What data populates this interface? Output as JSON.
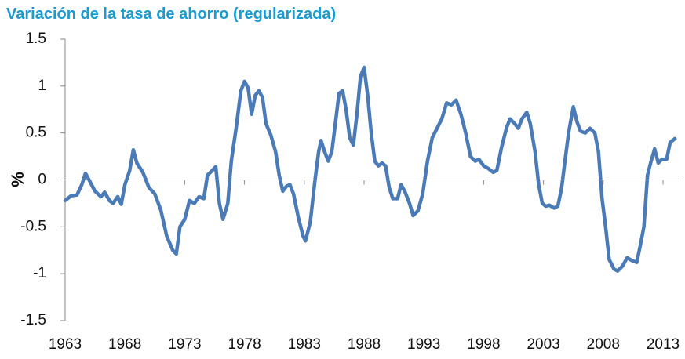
{
  "chart_data": {
    "type": "line",
    "title": "Variación de la tasa de ahorro (regularizada)",
    "y_label": "%",
    "x": [
      1963.0,
      1963.5,
      1964.0,
      1964.4,
      1964.7,
      1965.0,
      1965.5,
      1966.0,
      1966.3,
      1966.7,
      1967.0,
      1967.4,
      1967.7,
      1968.0,
      1968.4,
      1968.7,
      1969.0,
      1969.5,
      1970.0,
      1970.5,
      1971.0,
      1971.5,
      1972.0,
      1972.3,
      1972.6,
      1973.0,
      1973.4,
      1973.8,
      1974.2,
      1974.6,
      1974.9,
      1975.3,
      1975.6,
      1975.9,
      1976.2,
      1976.6,
      1976.9,
      1977.3,
      1977.7,
      1978.0,
      1978.3,
      1978.6,
      1978.9,
      1979.2,
      1979.5,
      1979.8,
      1980.2,
      1980.6,
      1980.9,
      1981.2,
      1981.5,
      1981.8,
      1982.1,
      1982.5,
      1982.9,
      1983.1,
      1983.5,
      1983.9,
      1984.2,
      1984.4,
      1984.7,
      1985.0,
      1985.3,
      1985.6,
      1985.9,
      1986.2,
      1986.5,
      1986.8,
      1987.1,
      1987.4,
      1987.7,
      1988.0,
      1988.3,
      1988.6,
      1988.9,
      1989.2,
      1989.5,
      1989.8,
      1990.1,
      1990.4,
      1990.8,
      1991.1,
      1991.4,
      1991.8,
      1992.1,
      1992.5,
      1992.9,
      1993.3,
      1993.7,
      1994.1,
      1994.5,
      1994.9,
      1995.3,
      1995.7,
      1996.1,
      1996.5,
      1996.9,
      1997.3,
      1997.6,
      1998.0,
      1998.4,
      1998.8,
      1999.1,
      1999.5,
      1999.9,
      2000.2,
      2000.6,
      2000.9,
      2001.2,
      2001.6,
      2001.9,
      2002.3,
      2002.6,
      2002.9,
      2003.2,
      2003.5,
      2003.9,
      2004.2,
      2004.5,
      2004.8,
      2005.1,
      2005.5,
      2005.8,
      2006.1,
      2006.5,
      2006.9,
      2007.3,
      2007.6,
      2007.9,
      2008.2,
      2008.5,
      2008.9,
      2009.2,
      2009.6,
      2010.0,
      2010.4,
      2010.8,
      2011.1,
      2011.4,
      2011.7,
      2012.0,
      2012.3,
      2012.6,
      2012.9,
      2013.3,
      2013.6,
      2014.0
    ],
    "series": [
      {
        "name": "Variación",
        "color": "#4a7ab7",
        "values": [
          -0.22,
          -0.17,
          -0.16,
          -0.05,
          0.07,
          0.0,
          -0.12,
          -0.18,
          -0.13,
          -0.22,
          -0.25,
          -0.18,
          -0.26,
          -0.05,
          0.1,
          0.32,
          0.18,
          0.08,
          -0.08,
          -0.15,
          -0.32,
          -0.6,
          -0.75,
          -0.79,
          -0.5,
          -0.42,
          -0.22,
          -0.25,
          -0.18,
          -0.2,
          0.05,
          0.1,
          0.14,
          -0.25,
          -0.42,
          -0.25,
          0.2,
          0.55,
          0.95,
          1.05,
          0.98,
          0.7,
          0.9,
          0.95,
          0.88,
          0.6,
          0.48,
          0.3,
          0.05,
          -0.12,
          -0.07,
          -0.05,
          -0.15,
          -0.4,
          -0.6,
          -0.65,
          -0.45,
          0.0,
          0.3,
          0.42,
          0.3,
          0.2,
          0.3,
          0.6,
          0.92,
          0.95,
          0.75,
          0.45,
          0.37,
          0.7,
          1.1,
          1.2,
          0.9,
          0.5,
          0.2,
          0.15,
          0.18,
          0.15,
          -0.08,
          -0.2,
          -0.2,
          -0.05,
          -0.12,
          -0.25,
          -0.38,
          -0.33,
          -0.15,
          0.2,
          0.45,
          0.55,
          0.65,
          0.82,
          0.8,
          0.85,
          0.7,
          0.5,
          0.25,
          0.2,
          0.22,
          0.15,
          0.12,
          0.08,
          0.1,
          0.35,
          0.55,
          0.65,
          0.6,
          0.55,
          0.65,
          0.72,
          0.6,
          0.3,
          -0.05,
          -0.25,
          -0.28,
          -0.27,
          -0.3,
          -0.28,
          -0.1,
          0.2,
          0.5,
          0.78,
          0.62,
          0.52,
          0.5,
          0.55,
          0.5,
          0.3,
          -0.2,
          -0.5,
          -0.85,
          -0.95,
          -0.97,
          -0.92,
          -0.83,
          -0.86,
          -0.88,
          -0.7,
          -0.5,
          0.05,
          0.2,
          0.33,
          0.18,
          0.22,
          0.22,
          0.4,
          0.44
        ]
      }
    ],
    "xlim": [
      1963,
      2014.5
    ],
    "xticks": [
      1963,
      1968,
      1973,
      1978,
      1983,
      1988,
      1993,
      1998,
      2003,
      2008,
      2013
    ],
    "ylim": [
      -1.5,
      1.5
    ],
    "yticks": [
      1.5,
      1,
      0.5,
      0,
      -0.5,
      -1,
      -1.5
    ],
    "grid": false
  }
}
